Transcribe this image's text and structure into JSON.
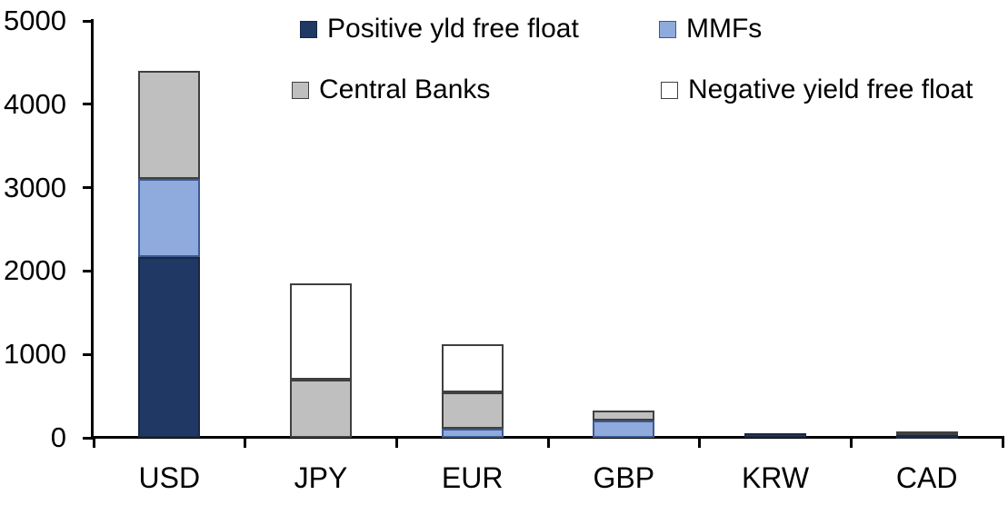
{
  "chart_data": {
    "type": "bar",
    "stacked": true,
    "title": "",
    "xlabel": "",
    "ylabel": "",
    "categories": [
      "USD",
      "JPY",
      "EUR",
      "GBP",
      "KRW",
      "CAD"
    ],
    "series": [
      {
        "name": "Positive yld free float",
        "color": "#1f3864",
        "border": "#1a2744",
        "values": [
          2170,
          0,
          0,
          0,
          50,
          35
        ]
      },
      {
        "name": "MMFs",
        "color": "#8faadc",
        "border": "#3b5a93",
        "values": [
          940,
          0,
          110,
          210,
          0,
          0
        ]
      },
      {
        "name": "Central Banks",
        "color": "#bfbfbf",
        "border": "#404040",
        "values": [
          1290,
          700,
          430,
          120,
          0,
          45
        ]
      },
      {
        "name": "Negative yield free float",
        "color": "#ffffff",
        "border": "#404040",
        "values": [
          0,
          1150,
          580,
          0,
          0,
          0
        ]
      }
    ],
    "totals": [
      4400,
      1850,
      1120,
      330,
      50,
      80
    ],
    "ylim": [
      0,
      5000
    ],
    "yticks": [
      0,
      1000,
      2000,
      3000,
      4000,
      5000
    ],
    "grid": false,
    "legend_position": "top-inside, two columns, two rows",
    "axis_color": "#000000",
    "background_color": "#ffffff"
  }
}
